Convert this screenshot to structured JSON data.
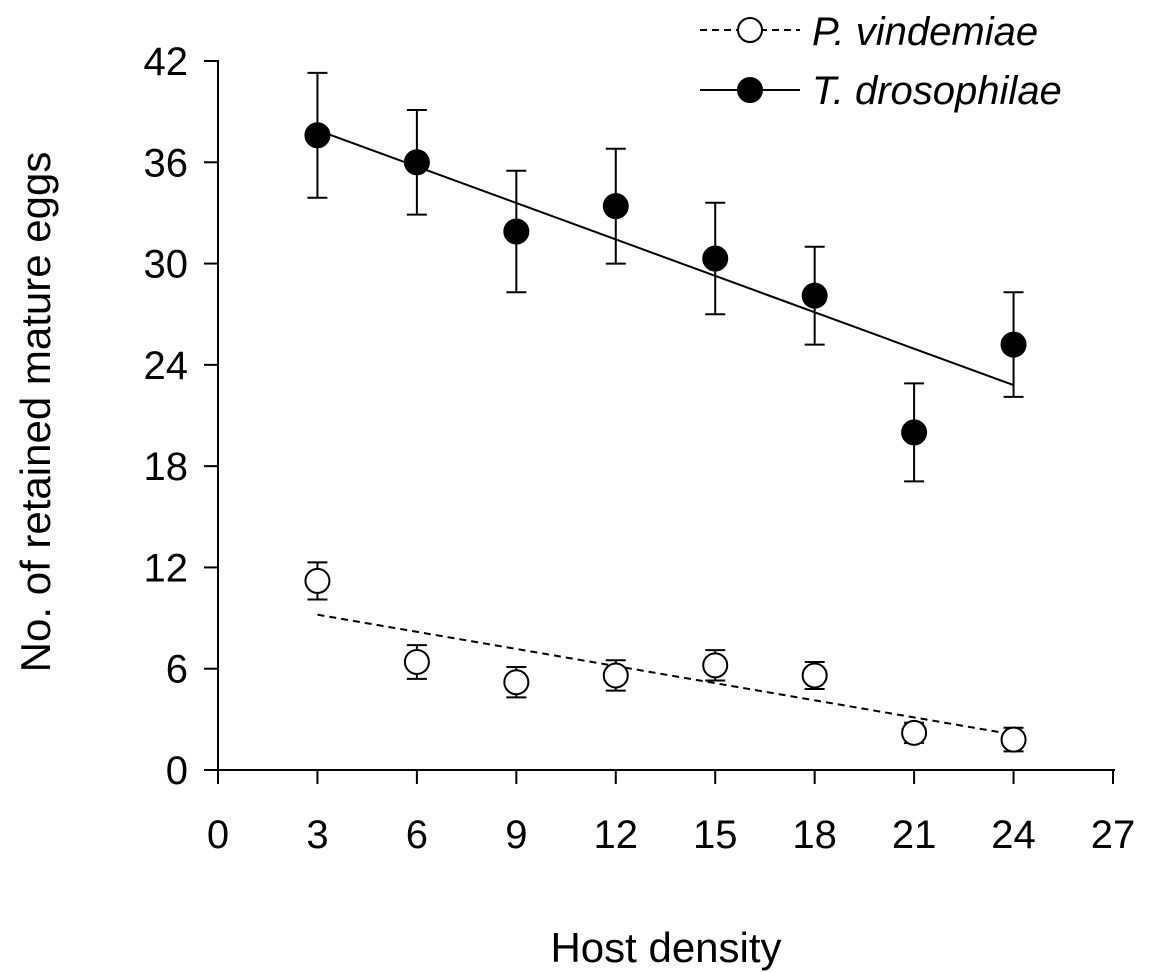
{
  "chart_data": {
    "type": "scatter",
    "xlabel": "Host density",
    "ylabel": "No. of retained mature eggs",
    "xlim": [
      0,
      27
    ],
    "ylim": [
      0,
      42
    ],
    "xticks": [
      "0",
      "3",
      "6",
      "9",
      "12",
      "15",
      "18",
      "21",
      "24",
      "27"
    ],
    "yticks": [
      "0",
      "6",
      "12",
      "18",
      "24",
      "30",
      "36",
      "42"
    ],
    "legend_position": "top-right",
    "grid": false,
    "series": [
      {
        "name": "P. vindemiae",
        "marker": "open-circle",
        "trend_line": "dashed",
        "x": [
          3,
          6,
          9,
          12,
          15,
          18,
          21,
          24
        ],
        "y": [
          11.2,
          6.4,
          5.2,
          5.6,
          6.2,
          5.6,
          2.2,
          1.8
        ],
        "error": [
          1.1,
          1.0,
          0.9,
          0.9,
          0.9,
          0.8,
          0.6,
          0.7
        ],
        "trend": {
          "x": [
            3,
            24
          ],
          "y": [
            9.2,
            2.1
          ]
        }
      },
      {
        "name": "T. drosophilae",
        "marker": "filled-circle",
        "trend_line": "solid",
        "x": [
          3,
          6,
          9,
          12,
          15,
          18,
          21,
          24
        ],
        "y": [
          37.6,
          36.0,
          31.9,
          33.4,
          30.3,
          28.1,
          20.0,
          25.2
        ],
        "error": [
          3.7,
          3.1,
          3.6,
          3.4,
          3.3,
          2.9,
          2.9,
          3.1
        ],
        "trend": {
          "x": [
            3,
            24
          ],
          "y": [
            37.9,
            22.8
          ]
        }
      }
    ]
  }
}
